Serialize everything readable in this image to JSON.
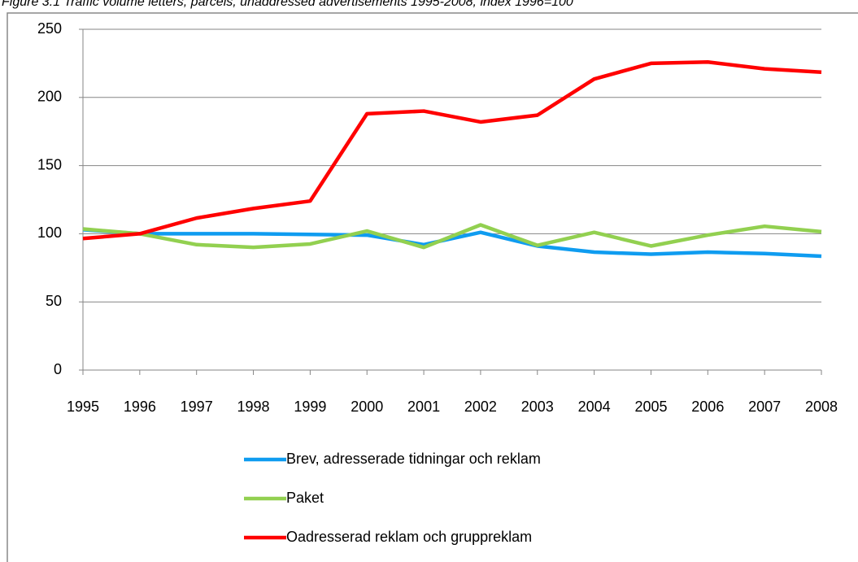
{
  "chart_data": {
    "type": "line",
    "title": "Figure 3.1 Traffic volume letters, parcels, unaddressed advertisements 1995-2008, index 1996=100",
    "categories": [
      "1995",
      "1996",
      "1997",
      "1998",
      "1999",
      "2000",
      "2001",
      "2002",
      "2003",
      "2004",
      "2005",
      "2006",
      "2007",
      "2008"
    ],
    "series": [
      {
        "name": "Brev, adresserade tidningar och reklam",
        "color": "#0f9cf0",
        "values": [
          103,
          100,
          100,
          100,
          99.5,
          99,
          92,
          101,
          91,
          86.5,
          85,
          86.5,
          85.5,
          83.5
        ]
      },
      {
        "name": "Paket",
        "color": "#92d050",
        "values": [
          103.5,
          100,
          92,
          90,
          92.5,
          102,
          90,
          106.5,
          91.5,
          101,
          91,
          99,
          105.5,
          101.5
        ]
      },
      {
        "name": "Oadresserad reklam och gruppreklam",
        "color": "#ff0000",
        "values": [
          96.5,
          100,
          111.5,
          118.5,
          124,
          188,
          190,
          182,
          187,
          213.5,
          225,
          226,
          221,
          218.5
        ]
      }
    ],
    "ylim": [
      0,
      250
    ],
    "yticks": [
      0,
      50,
      100,
      150,
      200,
      250
    ],
    "grid": true,
    "legend": "bottom"
  }
}
